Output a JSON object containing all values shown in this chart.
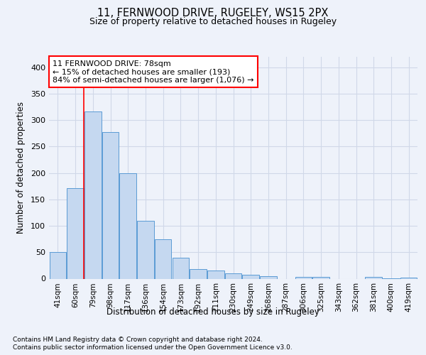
{
  "title_line1": "11, FERNWOOD DRIVE, RUGELEY, WS15 2PX",
  "title_line2": "Size of property relative to detached houses in Rugeley",
  "xlabel": "Distribution of detached houses by size in Rugeley",
  "ylabel": "Number of detached properties",
  "categories": [
    "41sqm",
    "60sqm",
    "79sqm",
    "98sqm",
    "117sqm",
    "136sqm",
    "154sqm",
    "173sqm",
    "192sqm",
    "211sqm",
    "230sqm",
    "249sqm",
    "268sqm",
    "287sqm",
    "306sqm",
    "325sqm",
    "343sqm",
    "362sqm",
    "381sqm",
    "400sqm",
    "419sqm"
  ],
  "values": [
    50,
    172,
    317,
    278,
    200,
    109,
    74,
    39,
    18,
    16,
    10,
    8,
    5,
    0,
    4,
    3,
    0,
    0,
    3,
    1,
    2
  ],
  "bar_color": "#c5d8f0",
  "bar_edge_color": "#5b9bd5",
  "annotation_text": "11 FERNWOOD DRIVE: 78sqm\n← 15% of detached houses are smaller (193)\n84% of semi-detached houses are larger (1,076) →",
  "vline_index": 2,
  "ylim": [
    0,
    420
  ],
  "yticks": [
    0,
    50,
    100,
    150,
    200,
    250,
    300,
    350,
    400
  ],
  "footnote1": "Contains HM Land Registry data © Crown copyright and database right 2024.",
  "footnote2": "Contains public sector information licensed under the Open Government Licence v3.0.",
  "background_color": "#eef2fa",
  "grid_color": "#d0d8e8",
  "bar_width": 0.95
}
